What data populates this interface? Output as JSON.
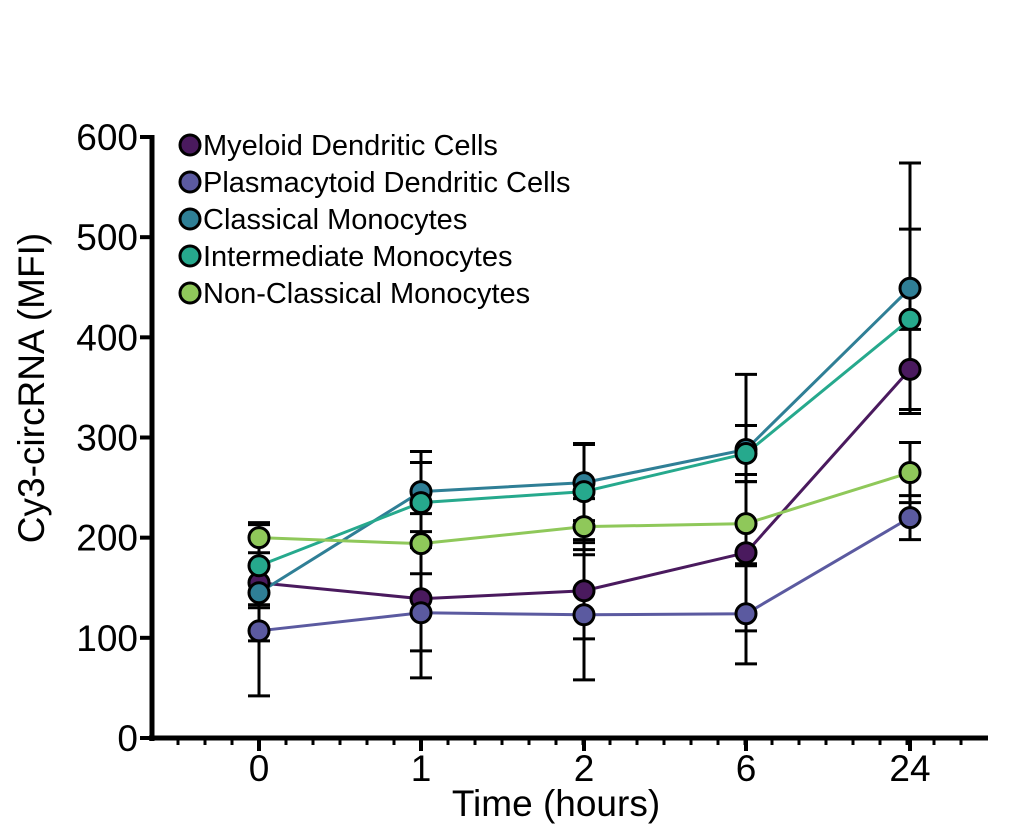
{
  "chart_data": {
    "type": "line",
    "xlabel": "Time (hours)",
    "ylabel": "Cy3-circRNA (MFI)",
    "categories": [
      "0",
      "1",
      "2",
      "6",
      "24"
    ],
    "ylim": [
      0,
      600
    ],
    "yticks": [
      "0",
      "100",
      "200",
      "300",
      "400",
      "500",
      "600"
    ],
    "legend_position": "top-left",
    "grid": false,
    "error_bars": true,
    "series": [
      {
        "name": "Myeloid Dendritic Cells",
        "color": "#4a1a5e",
        "values": [
          155,
          139,
          147,
          185,
          368
        ],
        "errors": [
          58,
          52,
          48,
          78,
          40
        ]
      },
      {
        "name": "Plasmacytoid Dendritic Cells",
        "color": "#5b5aa0",
        "values": [
          107,
          125,
          123,
          124,
          220
        ],
        "errors": [
          65,
          65,
          65,
          50,
          22
        ]
      },
      {
        "name": "Classical Monocytes",
        "color": "#2f7f96",
        "values": [
          145,
          246,
          255,
          288,
          449
        ],
        "errors": [
          12,
          40,
          38,
          75,
          125
        ]
      },
      {
        "name": "Intermediate Monocytes",
        "color": "#26a98d",
        "values": [
          172,
          235,
          246,
          284,
          418
        ],
        "errors": [
          42,
          40,
          48,
          28,
          90
        ]
      },
      {
        "name": "Non-Classical Monocytes",
        "color": "#8fc85a",
        "values": [
          200,
          194,
          211,
          214,
          265
        ],
        "errors": [
          15,
          30,
          28,
          42,
          30
        ]
      }
    ]
  }
}
